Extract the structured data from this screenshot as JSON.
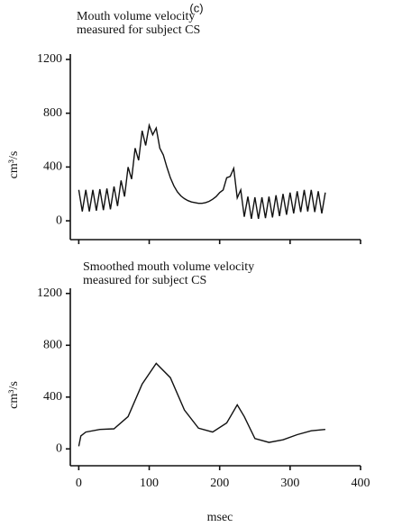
{
  "panel_label": "(c)",
  "chart_data": [
    {
      "type": "line",
      "title_lines": [
        "Mouth volume velocity",
        "measured for subject CS"
      ],
      "ylabel": "cm³/s",
      "xlim": [
        -12,
        400
      ],
      "ylim": [
        -140,
        1240
      ],
      "xticks": [
        0,
        100,
        200,
        300,
        400
      ],
      "yticks": [
        0,
        400,
        800,
        1200
      ],
      "x": [
        0,
        5,
        10,
        15,
        20,
        25,
        30,
        35,
        40,
        45,
        50,
        55,
        60,
        65,
        70,
        75,
        80,
        85,
        90,
        95,
        100,
        105,
        110,
        115,
        120,
        125,
        130,
        135,
        140,
        145,
        150,
        155,
        160,
        165,
        170,
        175,
        180,
        185,
        190,
        195,
        200,
        205,
        210,
        215,
        220,
        225,
        230,
        235,
        240,
        245,
        250,
        255,
        260,
        265,
        270,
        275,
        280,
        285,
        290,
        295,
        300,
        305,
        310,
        315,
        320,
        325,
        330,
        335,
        340,
        345,
        350
      ],
      "series": [
        {
          "color": "#111111",
          "values": [
            230,
            70,
            230,
            70,
            230,
            75,
            235,
            80,
            240,
            85,
            255,
            110,
            300,
            180,
            400,
            310,
            540,
            450,
            670,
            560,
            710,
            640,
            690,
            540,
            490,
            400,
            320,
            260,
            215,
            185,
            165,
            150,
            140,
            135,
            130,
            130,
            135,
            145,
            160,
            180,
            210,
            230,
            320,
            330,
            390,
            170,
            230,
            30,
            180,
            15,
            175,
            15,
            175,
            20,
            180,
            25,
            190,
            35,
            200,
            45,
            210,
            55,
            220,
            65,
            230,
            70,
            230,
            65,
            220,
            55,
            210
          ]
        }
      ]
    },
    {
      "type": "line",
      "title_lines": [
        "Smoothed mouth volume velocity",
        "measured for subject CS"
      ],
      "ylabel": "cm³/s",
      "xlabel": "msec",
      "xlim": [
        -12,
        400
      ],
      "ylim": [
        -130,
        1240
      ],
      "xticks": [
        0,
        100,
        200,
        300,
        400
      ],
      "yticks": [
        0,
        400,
        800,
        1200
      ],
      "x": [
        0,
        3,
        10,
        30,
        50,
        70,
        90,
        110,
        130,
        150,
        170,
        190,
        210,
        225,
        235,
        250,
        270,
        290,
        310,
        330,
        350
      ],
      "series": [
        {
          "color": "#111111",
          "values": [
            20,
            100,
            130,
            150,
            155,
            250,
            500,
            660,
            550,
            300,
            160,
            130,
            200,
            340,
            250,
            80,
            50,
            70,
            110,
            140,
            150
          ]
        }
      ]
    }
  ]
}
